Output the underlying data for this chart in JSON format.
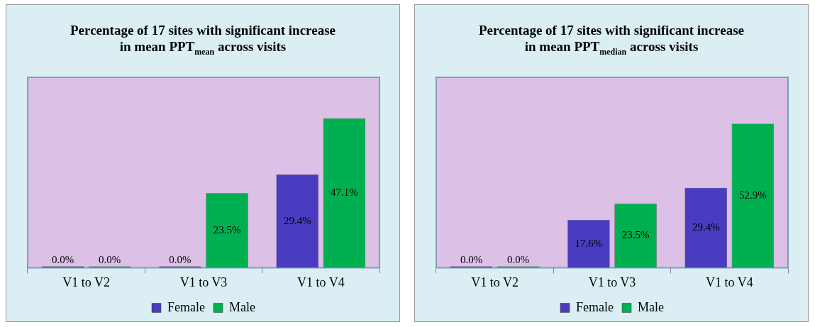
{
  "chart_data": [
    {
      "type": "bar",
      "title": "Percentage of 17 sites with significant increase\nin mean PPT$_{mean}$ across visits",
      "categories": [
        "V1 to V2",
        "V1 to V3",
        "V1 to V4"
      ],
      "legend": "bottom",
      "series": [
        {
          "name": "Female",
          "color": "#4a3cc0",
          "values": [
            0,
            0,
            29.4
          ],
          "value_labels": [
            "0.0%",
            "0.0%",
            "29.4%"
          ]
        },
        {
          "name": "Male",
          "color": "#00b050",
          "values": [
            0,
            23.5,
            47.1
          ],
          "value_labels": [
            "0.0%",
            "23.5%",
            "47.1%"
          ]
        }
      ]
    },
    {
      "type": "bar",
      "title": "Percentage of 17 sites with significant increase\nin mean PPT$_{median}$ across visits",
      "categories": [
        "V1 to V2",
        "V1 to V3",
        "V1 to V4"
      ],
      "legend": "bottom",
      "series": [
        {
          "name": "Female",
          "color": "#4a3cc0",
          "values": [
            0,
            17.6,
            29.4
          ],
          "value_labels": [
            "0.0%",
            "17.6%",
            "29.4%"
          ]
        },
        {
          "name": "Male",
          "color": "#00b050",
          "values": [
            0,
            23.5,
            52.9
          ],
          "value_labels": [
            "0.0%",
            "23.5%",
            "52.9%"
          ]
        }
      ]
    }
  ]
}
